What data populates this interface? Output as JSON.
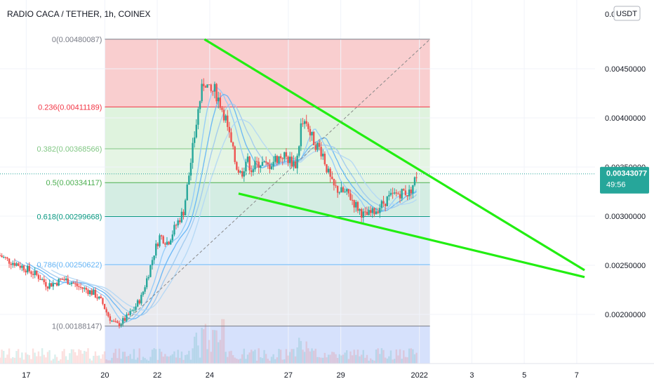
{
  "chart_data": {
    "type": "candlestick",
    "title": "RADIO CACA / TETHER, 1h, COINEX",
    "currency_button": "USDT",
    "price_axis": {
      "ylim": [
        0.0015,
        0.0052
      ],
      "ticks": [
        {
          "value": 0.0045,
          "label": "0.00450000"
        },
        {
          "value": 0.004,
          "label": "0.00400000"
        },
        {
          "value": 0.0035,
          "label": "0.00350000"
        },
        {
          "value": 0.003,
          "label": "0.00300000"
        },
        {
          "value": 0.0025,
          "label": "0.00250000"
        },
        {
          "value": 0.002,
          "label": "0.00200000"
        }
      ],
      "partial_top_label": "0.0",
      "partial_top_label_value": 0.005
    },
    "time_axis": {
      "range_days": [
        16.0,
        38.7
      ],
      "ticks": [
        {
          "day": 17,
          "label": "17"
        },
        {
          "day": 20,
          "label": "20"
        },
        {
          "day": 22,
          "label": "22"
        },
        {
          "day": 24,
          "label": "24"
        },
        {
          "day": 27,
          "label": "27"
        },
        {
          "day": 29,
          "label": "29"
        },
        {
          "day": 32,
          "label": "2022"
        },
        {
          "day": 34,
          "label": "3"
        },
        {
          "day": 36,
          "label": "5"
        },
        {
          "day": 38,
          "label": "7"
        }
      ]
    },
    "current_price": {
      "value": 0.00343077,
      "label": "0.00343077",
      "countdown": "49:56",
      "color": "#26a69a"
    },
    "fib_retracement": {
      "start_day": 20.0,
      "end_day": 32.4,
      "levels": [
        {
          "ratio": 0,
          "price": 0.00480087,
          "label": "0(0.00480087)",
          "color": "#787b86",
          "fill": "#f8c5c7"
        },
        {
          "ratio": 0.236,
          "price": 0.00411189,
          "label": "0.236(0.00411189)",
          "color": "#f23645",
          "fill": "#d9f1d8"
        },
        {
          "ratio": 0.382,
          "price": 0.00368566,
          "label": "0.382(0.00368566)",
          "color": "#81c784",
          "fill": "#e1f3df"
        },
        {
          "ratio": 0.5,
          "price": 0.00334117,
          "label": "0.5(0.00334117)",
          "color": "#4caf50",
          "fill": "#cdeade"
        },
        {
          "ratio": 0.618,
          "price": 0.00299668,
          "label": "0.618(0.00299668)",
          "color": "#089981",
          "fill": "#dbeafc"
        },
        {
          "ratio": 0.786,
          "price": 0.00250622,
          "label": "0.786(0.00250622)",
          "color": "#64b5f6",
          "fill": "#e6e6ea"
        },
        {
          "ratio": 1,
          "price": 0.00188147,
          "label": "1(0.00188147)",
          "color": "#787b86",
          "fill": "#cfdcfb"
        }
      ]
    },
    "trendlines": [
      {
        "name": "upper",
        "color": "#22ee11",
        "points": [
          [
            23.8,
            0.0048
          ],
          [
            38.3,
            0.00245
          ]
        ]
      },
      {
        "name": "lower",
        "color": "#22ee11",
        "points": [
          [
            25.1,
            0.00323
          ],
          [
            38.3,
            0.00238
          ]
        ]
      },
      {
        "name": "diagonal",
        "color": "#8a8a8a",
        "dashed": true,
        "points": [
          [
            20.6,
            0.00188
          ],
          [
            32.4,
            0.0048
          ]
        ]
      }
    ],
    "price_series": [
      [
        16.0,
        0.0026
      ],
      [
        16.3,
        0.00255
      ],
      [
        16.6,
        0.00252
      ],
      [
        16.9,
        0.00248
      ],
      [
        17.2,
        0.00243
      ],
      [
        17.5,
        0.00238
      ],
      [
        17.8,
        0.0023
      ],
      [
        18.1,
        0.00232
      ],
      [
        18.4,
        0.00236
      ],
      [
        18.7,
        0.00233
      ],
      [
        19.0,
        0.00228
      ],
      [
        19.3,
        0.00225
      ],
      [
        19.6,
        0.00221
      ],
      [
        19.9,
        0.00212
      ],
      [
        20.1,
        0.002
      ],
      [
        20.3,
        0.00192
      ],
      [
        20.5,
        0.00189
      ],
      [
        20.8,
        0.00196
      ],
      [
        21.1,
        0.00205
      ],
      [
        21.4,
        0.00218
      ],
      [
        21.7,
        0.00245
      ],
      [
        21.9,
        0.00265
      ],
      [
        22.1,
        0.0028
      ],
      [
        22.4,
        0.00273
      ],
      [
        22.7,
        0.0029
      ],
      [
        23.0,
        0.00305
      ],
      [
        23.2,
        0.0034
      ],
      [
        23.4,
        0.00378
      ],
      [
        23.6,
        0.00415
      ],
      [
        23.8,
        0.0044
      ],
      [
        24.0,
        0.00425
      ],
      [
        24.2,
        0.00428
      ],
      [
        24.4,
        0.00415
      ],
      [
        24.6,
        0.004
      ],
      [
        24.8,
        0.00375
      ],
      [
        25.0,
        0.00352
      ],
      [
        25.2,
        0.00342
      ],
      [
        25.4,
        0.00358
      ],
      [
        25.6,
        0.00348
      ],
      [
        25.9,
        0.00355
      ],
      [
        26.2,
        0.0035
      ],
      [
        26.5,
        0.00358
      ],
      [
        26.8,
        0.00362
      ],
      [
        27.1,
        0.00356
      ],
      [
        27.3,
        0.00352
      ],
      [
        27.5,
        0.00395
      ],
      [
        27.7,
        0.0039
      ],
      [
        28.0,
        0.00375
      ],
      [
        28.3,
        0.00365
      ],
      [
        28.5,
        0.00345
      ],
      [
        28.7,
        0.0033
      ],
      [
        29.0,
        0.00325
      ],
      [
        29.3,
        0.00322
      ],
      [
        29.6,
        0.0031
      ],
      [
        29.9,
        0.003
      ],
      [
        30.2,
        0.00303
      ],
      [
        30.5,
        0.0031
      ],
      [
        30.8,
        0.00318
      ],
      [
        31.1,
        0.00322
      ],
      [
        31.4,
        0.00325
      ],
      [
        31.6,
        0.00323
      ],
      [
        31.8,
        0.00335
      ],
      [
        31.9,
        0.00343
      ]
    ],
    "volume_note": "volume bars at bottom"
  }
}
